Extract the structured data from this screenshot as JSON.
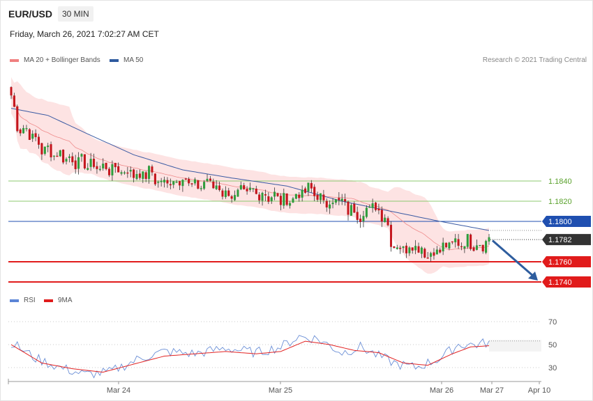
{
  "header": {
    "pair": "EUR/USD",
    "timeframe": "30 MIN",
    "datetime": "Friday, March 26, 2021 7:02:27 AM CET"
  },
  "legend": {
    "ma20_label": "MA 20 + Bollinger Bands",
    "ma50_label": "MA 50",
    "copyright": "Research © 2021 Trading Central",
    "rsi_label": "RSI",
    "ma9_label": "9MA"
  },
  "colors": {
    "bullish": "#2e9c3b",
    "bearish": "#c4151c",
    "bollinger_fill": "#fde3e3",
    "ma20": "#ef8b8b",
    "ma50": "#3a5aa3",
    "resistance": "#8cc86f",
    "pivot": "#1f4fb0",
    "support": "#e11b1b",
    "last_price": "#333333",
    "arrow": "#2e5d9e",
    "rsi": "#6b8fd6",
    "rsi_ma": "#e22222"
  },
  "chart_data": [
    {
      "type": "candlestick",
      "title": "EUR/USD",
      "x_labels": [
        "Mar 24",
        "Mar 25",
        "Mar 26",
        "Mar 27",
        "Apr 10"
      ],
      "levels": [
        {
          "value": 1.184,
          "label": "1.1840",
          "kind": "resistance"
        },
        {
          "value": 1.182,
          "label": "1.1820",
          "kind": "resistance"
        },
        {
          "value": 1.18,
          "label": "1.1800",
          "kind": "pivot"
        },
        {
          "value": 1.1782,
          "label": "1.1782",
          "kind": "last"
        },
        {
          "value": 1.176,
          "label": "1.1760",
          "kind": "support"
        },
        {
          "value": 1.174,
          "label": "1.1740",
          "kind": "support"
        }
      ],
      "projection": {
        "from": 1.1781,
        "to": 1.174
      },
      "close_keypoints": [
        [
          0,
          1.1925
        ],
        [
          2,
          1.1895
        ],
        [
          6,
          1.1888
        ],
        [
          10,
          1.1872
        ],
        [
          14,
          1.1868
        ],
        [
          19,
          1.1862
        ],
        [
          24,
          1.1857
        ],
        [
          30,
          1.1853
        ],
        [
          36,
          1.1851
        ],
        [
          42,
          1.1846
        ],
        [
          46,
          1.1848
        ],
        [
          48,
          1.1838
        ],
        [
          52,
          1.1839
        ],
        [
          56,
          1.1844
        ],
        [
          60,
          1.1833
        ],
        [
          64,
          1.184
        ],
        [
          67,
          1.1834
        ],
        [
          72,
          1.1825
        ],
        [
          76,
          1.1828
        ],
        [
          80,
          1.1829
        ],
        [
          84,
          1.1826
        ],
        [
          90,
          1.182
        ],
        [
          94,
          1.1827
        ],
        [
          98,
          1.1832
        ],
        [
          102,
          1.1818
        ],
        [
          106,
          1.1822
        ],
        [
          110,
          1.1813
        ],
        [
          114,
          1.1807
        ],
        [
          118,
          1.1815
        ],
        [
          122,
          1.1806
        ],
        [
          124,
          1.1781
        ],
        [
          127,
          1.1773
        ],
        [
          132,
          1.1777
        ],
        [
          136,
          1.1767
        ],
        [
          140,
          1.1772
        ],
        [
          144,
          1.1778
        ],
        [
          149,
          1.178
        ],
        [
          153,
          1.1777
        ],
        [
          156,
          1.1782
        ]
      ],
      "ma50_keypoints": [
        [
          0,
          1.1912
        ],
        [
          12,
          1.1905
        ],
        [
          24,
          1.1888
        ],
        [
          40,
          1.1866
        ],
        [
          56,
          1.1851
        ],
        [
          72,
          1.1843
        ],
        [
          90,
          1.1835
        ],
        [
          108,
          1.182
        ],
        [
          124,
          1.181
        ],
        [
          140,
          1.18
        ],
        [
          156,
          1.1791
        ]
      ]
    },
    {
      "type": "line",
      "title": "RSI",
      "yticks": [
        70,
        50,
        30
      ],
      "ylim": [
        20,
        80
      ],
      "series": [
        {
          "name": "RSI",
          "keypoints": [
            [
              0,
              52
            ],
            [
              8,
              38
            ],
            [
              16,
              30
            ],
            [
              24,
              24
            ],
            [
              32,
              26
            ],
            [
              42,
              38
            ],
            [
              50,
              44
            ],
            [
              60,
              42
            ],
            [
              70,
              47
            ],
            [
              80,
              43
            ],
            [
              88,
              48
            ],
            [
              94,
              57
            ],
            [
              100,
              55
            ],
            [
              108,
              43
            ],
            [
              114,
              48
            ],
            [
              120,
              40
            ],
            [
              126,
              33
            ],
            [
              132,
              30
            ],
            [
              140,
              38
            ],
            [
              146,
              50
            ],
            [
              152,
              50
            ],
            [
              156,
              52
            ]
          ]
        },
        {
          "name": "9MA",
          "keypoints": [
            [
              0,
              50
            ],
            [
              10,
              34
            ],
            [
              20,
              29
            ],
            [
              30,
              26
            ],
            [
              40,
              33
            ],
            [
              50,
              40
            ],
            [
              60,
              42
            ],
            [
              70,
              44
            ],
            [
              80,
              42
            ],
            [
              88,
              44
            ],
            [
              96,
              53
            ],
            [
              104,
              50
            ],
            [
              112,
              45
            ],
            [
              120,
              43
            ],
            [
              128,
              34
            ],
            [
              136,
              32
            ],
            [
              144,
              42
            ],
            [
              150,
              48
            ],
            [
              156,
              49
            ]
          ]
        }
      ]
    }
  ]
}
